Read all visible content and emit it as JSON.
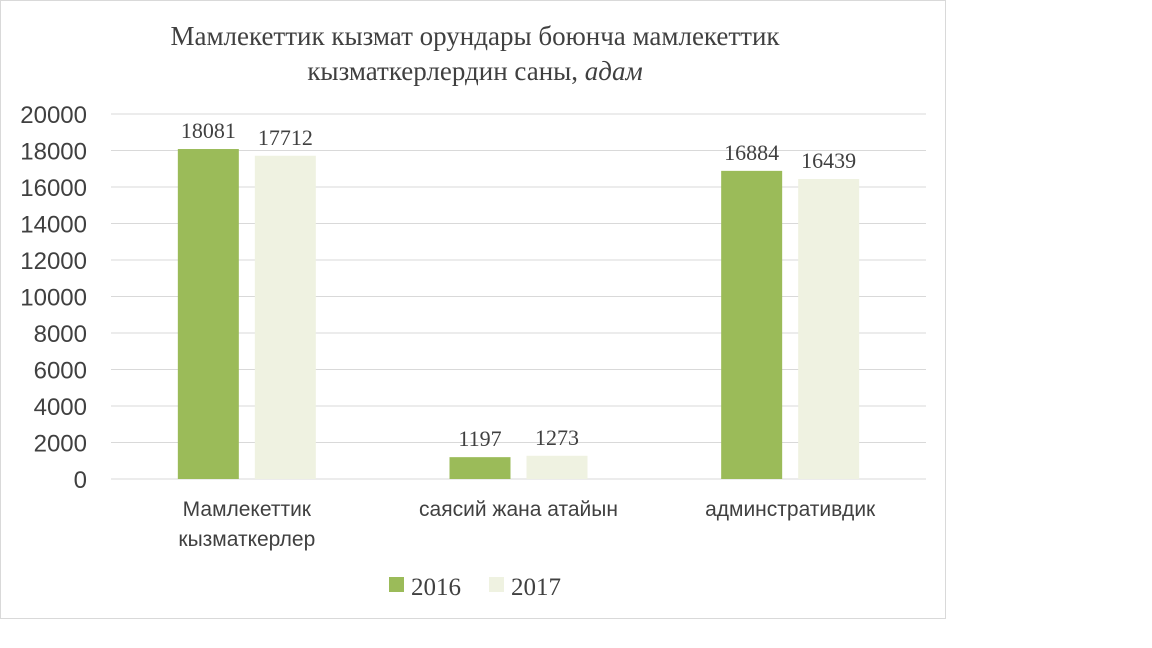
{
  "chart_data": {
    "type": "bar",
    "title": {
      "line1": "Мамлекеттик кызмат орундары боюнча мамлекеттик",
      "line2_main": "кызматкерлердин саны, ",
      "line2_unit": "адам"
    },
    "categories": [
      [
        "Мамлекеттик",
        "кызматкерлер"
      ],
      [
        "саясий жана атайын"
      ],
      [
        "админстративдик"
      ]
    ],
    "series": [
      {
        "name": "2016",
        "color": "#9bbb59",
        "values": [
          18081,
          1197,
          16884
        ],
        "labels": [
          "18081",
          "1197",
          "16884"
        ]
      },
      {
        "name": "2017",
        "color": "#eff2e1",
        "values": [
          17712,
          1273,
          16439
        ],
        "labels": [
          "17712",
          "1273",
          "16439"
        ]
      }
    ],
    "ylim": [
      0,
      20000
    ],
    "yticks": [
      0,
      2000,
      4000,
      6000,
      8000,
      10000,
      12000,
      14000,
      16000,
      18000,
      20000
    ],
    "ytick_labels": [
      "0",
      "2000",
      "4000",
      "6000",
      "8000",
      "10000",
      "12000",
      "14000",
      "16000",
      "18000",
      "20000"
    ],
    "grid": true,
    "gridline_color": "#d9d9d9",
    "legend_position": "bottom"
  }
}
